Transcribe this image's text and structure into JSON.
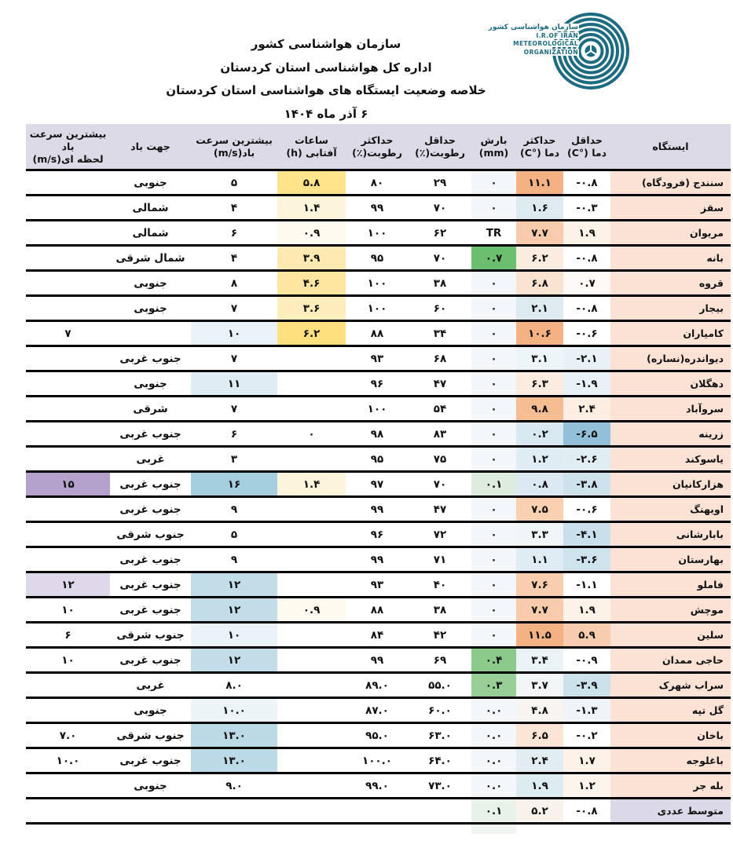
{
  "header": {
    "org": "سازمان هواشناسی کشور",
    "office": "اداره کل هواشناسی استان کردستان",
    "title": "خلاصه وضعیت ایستگاه های هواشناسی استان کردستان",
    "date": "۶ آذر ماه ۱۴۰۴",
    "logo": {
      "fa": "سازمان هواشناسی کشور",
      "en1": "I.R.OF IRAN",
      "en2": "METEOROLOGICAL",
      "en3": "ORGANIZATION"
    }
  },
  "palette": {
    "header_bg": "#dbdae6",
    "station_bg": "#fbe2d5",
    "avg_row_bg": "#dbd9e8",
    "border": "#000000",
    "logo_teal": "#1d6b80"
  },
  "table": {
    "columns": [
      {
        "id": "station",
        "l1": "ایستگاه",
        "l2": ""
      },
      {
        "id": "tmin",
        "l1": "حداقل",
        "l2": "دما (°C)"
      },
      {
        "id": "tmax",
        "l1": "حداکثر",
        "l2": "دما (°C)"
      },
      {
        "id": "precip",
        "l1": "بارش",
        "l2": "(mm)"
      },
      {
        "id": "rhmin",
        "l1": "حداقل",
        "l2": "رطوبت(٪)"
      },
      {
        "id": "rhmax",
        "l1": "حداکثر",
        "l2": "رطوبت(٪)"
      },
      {
        "id": "sun",
        "l1": "ساعات",
        "l2": "آفتابی (h)"
      },
      {
        "id": "wind",
        "l1": "بیشترین سرعت",
        "l2": "باد(m/s)"
      },
      {
        "id": "wdir",
        "l1": "جهت باد",
        "l2": ""
      },
      {
        "id": "gust",
        "l1": "بیشترین سرعت باد",
        "l2": "لحظه ای(m/s)"
      }
    ],
    "rows": [
      {
        "station": "سنندج (فرودگاه)",
        "tmin": {
          "v": "-۰.۸"
        },
        "tmax": {
          "v": "۱۱.۱",
          "bg": "#f4b183"
        },
        "precip": {
          "v": "۰",
          "bg": "#f4f7fa"
        },
        "rhmin": {
          "v": "۲۹"
        },
        "rhmax": {
          "v": "۸۰"
        },
        "sun": {
          "v": "۵.۸",
          "bg": "#ffe48c"
        },
        "wind": {
          "v": "۵"
        },
        "wdir": {
          "v": "جنوبی"
        },
        "gust": {
          "v": ""
        }
      },
      {
        "station": "سقز",
        "tmin": {
          "v": "-۰.۳"
        },
        "tmax": {
          "v": "۱.۶",
          "bg": "#ddebf1"
        },
        "precip": {
          "v": "۰",
          "bg": "#f4f7fa"
        },
        "rhmin": {
          "v": "۷۰"
        },
        "rhmax": {
          "v": "۹۹"
        },
        "sun": {
          "v": "۱.۴",
          "bg": "#fdf4dc"
        },
        "wind": {
          "v": "۴"
        },
        "wdir": {
          "v": "شمالی"
        },
        "gust": {
          "v": ""
        }
      },
      {
        "station": "مریوان",
        "tmin": {
          "v": "۱.۹",
          "bg": "#fdf2e7"
        },
        "tmax": {
          "v": "۷.۷",
          "bg": "#f8cbad"
        },
        "precip": {
          "v": "TR"
        },
        "rhmin": {
          "v": "۶۲"
        },
        "rhmax": {
          "v": "۱۰۰"
        },
        "sun": {
          "v": "۰.۹",
          "bg": "#fefaef"
        },
        "wind": {
          "v": "۶"
        },
        "wdir": {
          "v": "شمالی"
        },
        "gust": {
          "v": ""
        }
      },
      {
        "station": "بانه",
        "tmin": {
          "v": "-۰.۸"
        },
        "tmax": {
          "v": "۶.۲",
          "bg": "#fcebdf"
        },
        "precip": {
          "v": "۰.۷",
          "bg": "#6dbf70"
        },
        "rhmin": {
          "v": "۷۰"
        },
        "rhmax": {
          "v": "۹۵"
        },
        "sun": {
          "v": "۳.۹",
          "bg": "#fee9b0"
        },
        "wind": {
          "v": "۴"
        },
        "wdir": {
          "v": "شمال شرقی"
        },
        "gust": {
          "v": ""
        }
      },
      {
        "station": "قروه",
        "tmin": {
          "v": "۰.۷",
          "bg": "#fef9f5"
        },
        "tmax": {
          "v": "۶.۸",
          "bg": "#fbe3d2"
        },
        "precip": {
          "v": "۰",
          "bg": "#f4f7fa"
        },
        "rhmin": {
          "v": "۳۸"
        },
        "rhmax": {
          "v": "۱۰۰"
        },
        "sun": {
          "v": "۴.۶",
          "bg": "#fee6a0"
        },
        "wind": {
          "v": "۸"
        },
        "wdir": {
          "v": "جنوبی"
        },
        "gust": {
          "v": ""
        }
      },
      {
        "station": "بیجار",
        "tmin": {
          "v": "-۰.۸"
        },
        "tmax": {
          "v": "۲.۱",
          "bg": "#ddebf1"
        },
        "precip": {
          "v": "۰",
          "bg": "#f4f7fa"
        },
        "rhmin": {
          "v": "۶۰"
        },
        "rhmax": {
          "v": "۱۰۰"
        },
        "sun": {
          "v": "۳.۶",
          "bg": "#feeebc"
        },
        "wind": {
          "v": "۷"
        },
        "wdir": {
          "v": "جنوبی"
        },
        "gust": {
          "v": ""
        }
      },
      {
        "station": "کامیاران",
        "tmin": {
          "v": "-۰.۶"
        },
        "tmax": {
          "v": "۱۰.۶",
          "bg": "#f4b183"
        },
        "precip": {
          "v": "۰",
          "bg": "#f4f7fa"
        },
        "rhmin": {
          "v": "۳۴"
        },
        "rhmax": {
          "v": "۸۸"
        },
        "sun": {
          "v": "۶.۲",
          "bg": "#ffdf7e"
        },
        "wind": {
          "v": "۱۰",
          "bg": "#e9f2f7"
        },
        "wdir": {
          "v": ""
        },
        "gust": {
          "v": "۷"
        }
      },
      {
        "station": "دیواندره(نساره)",
        "tmin": {
          "v": "-۲.۱",
          "bg": "#e7f1f6"
        },
        "tmax": {
          "v": "۳.۱",
          "bg": "#eef5f8"
        },
        "precip": {
          "v": "۰",
          "bg": "#f4f7fa"
        },
        "rhmin": {
          "v": "۶۸"
        },
        "rhmax": {
          "v": "۹۳"
        },
        "sun": {
          "v": ""
        },
        "wind": {
          "v": "۷"
        },
        "wdir": {
          "v": "جنوب غربی"
        },
        "gust": {
          "v": ""
        }
      },
      {
        "station": "دهگلان",
        "tmin": {
          "v": "-۱.۹",
          "bg": "#e8f1f6"
        },
        "tmax": {
          "v": "۶.۳",
          "bg": "#fcebdf"
        },
        "precip": {
          "v": "۰",
          "bg": "#f4f7fa"
        },
        "rhmin": {
          "v": "۴۷"
        },
        "rhmax": {
          "v": "۹۶"
        },
        "sun": {
          "v": ""
        },
        "wind": {
          "v": "۱۱",
          "bg": "#ddedf3"
        },
        "wdir": {
          "v": "جنوبی"
        },
        "gust": {
          "v": ""
        }
      },
      {
        "station": "سروآباد",
        "tmin": {
          "v": "۲.۴",
          "bg": "#fdeee1"
        },
        "tmax": {
          "v": "۹.۸",
          "bg": "#f5bd92"
        },
        "precip": {
          "v": "۰",
          "bg": "#f4f7fa"
        },
        "rhmin": {
          "v": "۵۴"
        },
        "rhmax": {
          "v": "۱۰۰"
        },
        "sun": {
          "v": ""
        },
        "wind": {
          "v": "۷"
        },
        "wdir": {
          "v": "شرقی"
        },
        "gust": {
          "v": ""
        }
      },
      {
        "station": "زرینه",
        "tmin": {
          "v": "-۶.۵",
          "bg": "#92c0d8"
        },
        "tmax": {
          "v": "۰.۲",
          "bg": "#d8e9f1"
        },
        "precip": {
          "v": "۰",
          "bg": "#f4f7fa"
        },
        "rhmin": {
          "v": "۸۳"
        },
        "rhmax": {
          "v": "۹۸"
        },
        "sun": {
          "v": "۰"
        },
        "wind": {
          "v": "۶"
        },
        "wdir": {
          "v": "جنوب غربی"
        },
        "gust": {
          "v": ""
        }
      },
      {
        "station": "یاسوکند",
        "tmin": {
          "v": "-۲.۶",
          "bg": "#e0edf3"
        },
        "tmax": {
          "v": "۱.۲",
          "bg": "#dfecf3"
        },
        "precip": {
          "v": "۰",
          "bg": "#f4f7fa"
        },
        "rhmin": {
          "v": "۷۵"
        },
        "rhmax": {
          "v": "۹۵"
        },
        "sun": {
          "v": ""
        },
        "wind": {
          "v": "۳"
        },
        "wdir": {
          "v": "غربی"
        },
        "gust": {
          "v": ""
        }
      },
      {
        "station": "هزارکانیان",
        "tmin": {
          "v": "-۳.۸",
          "bg": "#cde2ed"
        },
        "tmax": {
          "v": "۰.۸",
          "bg": "#dbeaf2"
        },
        "precip": {
          "v": "۰.۱",
          "bg": "#ddecdc"
        },
        "rhmin": {
          "v": "۷۰"
        },
        "rhmax": {
          "v": "۹۷"
        },
        "sun": {
          "v": "۱.۴",
          "bg": "#fdf4dc"
        },
        "wind": {
          "v": "۱۶",
          "bg": "#a5cede"
        },
        "wdir": {
          "v": "جنوب غربی"
        },
        "gust": {
          "v": "۱۵",
          "bg": "#b4a2cd"
        }
      },
      {
        "station": "اویهنگ",
        "tmin": {
          "v": "-۰.۶"
        },
        "tmax": {
          "v": "۷.۵",
          "bg": "#f9d0b0"
        },
        "precip": {
          "v": "۰",
          "bg": "#f4f7fa"
        },
        "rhmin": {
          "v": "۴۷"
        },
        "rhmax": {
          "v": "۹۹"
        },
        "sun": {
          "v": ""
        },
        "wind": {
          "v": "۹"
        },
        "wdir": {
          "v": "جنوب غربی"
        },
        "gust": {
          "v": ""
        }
      },
      {
        "station": "بابارشانی",
        "tmin": {
          "v": "-۴.۱",
          "bg": "#c9dfeb"
        },
        "tmax": {
          "v": "۳.۳",
          "bg": "#f0f6f8"
        },
        "precip": {
          "v": "۰",
          "bg": "#f4f7fa"
        },
        "rhmin": {
          "v": "۷۲"
        },
        "rhmax": {
          "v": "۹۶"
        },
        "sun": {
          "v": ""
        },
        "wind": {
          "v": "۵"
        },
        "wdir": {
          "v": "جنوب شرقی"
        },
        "gust": {
          "v": ""
        }
      },
      {
        "station": "بهارستان",
        "tmin": {
          "v": "-۳.۶",
          "bg": "#cfe3ee"
        },
        "tmax": {
          "v": "۱.۱",
          "bg": "#dfecf3"
        },
        "precip": {
          "v": "۰",
          "bg": "#f4f7fa"
        },
        "rhmin": {
          "v": "۷۱"
        },
        "rhmax": {
          "v": "۹۹"
        },
        "sun": {
          "v": ""
        },
        "wind": {
          "v": "۹"
        },
        "wdir": {
          "v": "جنوب غربی"
        },
        "gust": {
          "v": ""
        }
      },
      {
        "station": "فاملو",
        "tmin": {
          "v": "-۱.۱"
        },
        "tmax": {
          "v": "۷.۶",
          "bg": "#f8ceae"
        },
        "precip": {
          "v": "۰",
          "bg": "#f4f7fa"
        },
        "rhmin": {
          "v": "۴۰"
        },
        "rhmax": {
          "v": "۹۳"
        },
        "sun": {
          "v": ""
        },
        "wind": {
          "v": "۱۲",
          "bg": "#c2dce8"
        },
        "wdir": {
          "v": "جنوب غربی"
        },
        "gust": {
          "v": "۱۲",
          "bg": "#ded8ea"
        }
      },
      {
        "station": "موچش",
        "tmin": {
          "v": "۱.۹",
          "bg": "#fdf2e7"
        },
        "tmax": {
          "v": "۷.۷",
          "bg": "#f8cbad"
        },
        "precip": {
          "v": "۰",
          "bg": "#f4f7fa"
        },
        "rhmin": {
          "v": "۳۸"
        },
        "rhmax": {
          "v": "۸۸"
        },
        "sun": {
          "v": "۰.۹",
          "bg": "#fefaef"
        },
        "wind": {
          "v": "۱۲",
          "bg": "#c2dce8"
        },
        "wdir": {
          "v": "جنوب غربی"
        },
        "gust": {
          "v": "۱۰"
        }
      },
      {
        "station": "سلین",
        "tmin": {
          "v": "۵.۹",
          "bg": "#f8ccae"
        },
        "tmax": {
          "v": "۱۱.۵",
          "bg": "#f4b183"
        },
        "precip": {
          "v": "۰",
          "bg": "#f4f7fa"
        },
        "rhmin": {
          "v": "۴۲"
        },
        "rhmax": {
          "v": "۸۴"
        },
        "sun": {
          "v": ""
        },
        "wind": {
          "v": "۱۰",
          "bg": "#e9f2f7"
        },
        "wdir": {
          "v": "جنوب شرقی"
        },
        "gust": {
          "v": "۶"
        }
      },
      {
        "station": "حاجی ممدان",
        "tmin": {
          "v": "-۰.۹"
        },
        "tmax": {
          "v": "۳.۴",
          "bg": "#eaf2f6"
        },
        "precip": {
          "v": "۰.۴",
          "bg": "#8cca8c"
        },
        "rhmin": {
          "v": "۶۹"
        },
        "rhmax": {
          "v": "۹۹"
        },
        "sun": {
          "v": ""
        },
        "wind": {
          "v": "۱۲",
          "bg": "#c2dce8"
        },
        "wdir": {
          "v": "جنوب غربی"
        },
        "gust": {
          "v": "۱۰"
        }
      },
      {
        "station": "سراب شهرک",
        "tmin": {
          "v": "-۳.۹",
          "bg": "#cbe1ec"
        },
        "tmax": {
          "v": "۳.۷",
          "bg": "#f2f6f7"
        },
        "precip": {
          "v": "۰.۳",
          "bg": "#97cf97"
        },
        "rhmin": {
          "v": "۵۵.۰"
        },
        "rhmax": {
          "v": "۸۹.۰"
        },
        "sun": {
          "v": ""
        },
        "wind": {
          "v": "۸.۰"
        },
        "wdir": {
          "v": "غربی"
        },
        "gust": {
          "v": ""
        }
      },
      {
        "station": "گل تپه",
        "tmin": {
          "v": "-۱.۳",
          "bg": "#eef4f8"
        },
        "tmax": {
          "v": "۴.۸",
          "bg": "#f8f4ef"
        },
        "precip": {
          "v": "۰.۰",
          "bg": "#f4f7fa"
        },
        "rhmin": {
          "v": "۶۰.۰"
        },
        "rhmax": {
          "v": "۸۷.۰"
        },
        "sun": {
          "v": ""
        },
        "wind": {
          "v": "۱۰.۰",
          "bg": "#ecf4f7"
        },
        "wdir": {
          "v": "جنوبی"
        },
        "gust": {
          "v": ""
        }
      },
      {
        "station": "باخان",
        "tmin": {
          "v": "-۰.۲"
        },
        "tmax": {
          "v": "۶.۵",
          "bg": "#fbe5d6"
        },
        "precip": {
          "v": "۰.۰",
          "bg": "#f4f7fa"
        },
        "rhmin": {
          "v": "۶۳.۰"
        },
        "rhmax": {
          "v": "۹۵.۰"
        },
        "sun": {
          "v": ""
        },
        "wind": {
          "v": "۱۳.۰",
          "bg": "#bcd9e6"
        },
        "wdir": {
          "v": "جنوب شرقی"
        },
        "gust": {
          "v": "۷.۰"
        }
      },
      {
        "station": "باغلوجه",
        "tmin": {
          "v": "۱.۷",
          "bg": "#fdf2e8"
        },
        "tmax": {
          "v": "۲.۴",
          "bg": "#e2edf3"
        },
        "precip": {
          "v": "۰.۰",
          "bg": "#f4f7fa"
        },
        "rhmin": {
          "v": "۶۴.۰"
        },
        "rhmax": {
          "v": "۱۰۰.۰"
        },
        "sun": {
          "v": ""
        },
        "wind": {
          "v": "۱۳.۰",
          "bg": "#bcd9e6"
        },
        "wdir": {
          "v": "جنوب غربی"
        },
        "gust": {
          "v": "۱۰.۰"
        }
      },
      {
        "station": "بله جر",
        "tmin": {
          "v": "۱.۲",
          "bg": "#fdf4ec"
        },
        "tmax": {
          "v": "۱.۹",
          "bg": "#ddecf1"
        },
        "precip": {
          "v": "۰.۰",
          "bg": "#f4f7fa"
        },
        "rhmin": {
          "v": "۷۳.۰"
        },
        "rhmax": {
          "v": "۹۹.۰"
        },
        "sun": {
          "v": ""
        },
        "wind": {
          "v": "۹.۰"
        },
        "wdir": {
          "v": "جنوبی"
        },
        "gust": {
          "v": ""
        }
      },
      {
        "station": "متوسط عددی",
        "station_bg": "#dbd9e8",
        "tmin": {
          "v": "-۰.۸"
        },
        "tmax": {
          "v": "۵.۲",
          "bg": "#f9f2ea"
        },
        "precip": {
          "v": "۰.۱",
          "bg": "#e9f2e9"
        },
        "rhmin": {
          "v": ""
        },
        "rhmax": {
          "v": ""
        },
        "sun": {
          "v": ""
        },
        "wind": {
          "v": ""
        },
        "wdir": {
          "v": ""
        },
        "gust": {
          "v": ""
        }
      }
    ]
  }
}
